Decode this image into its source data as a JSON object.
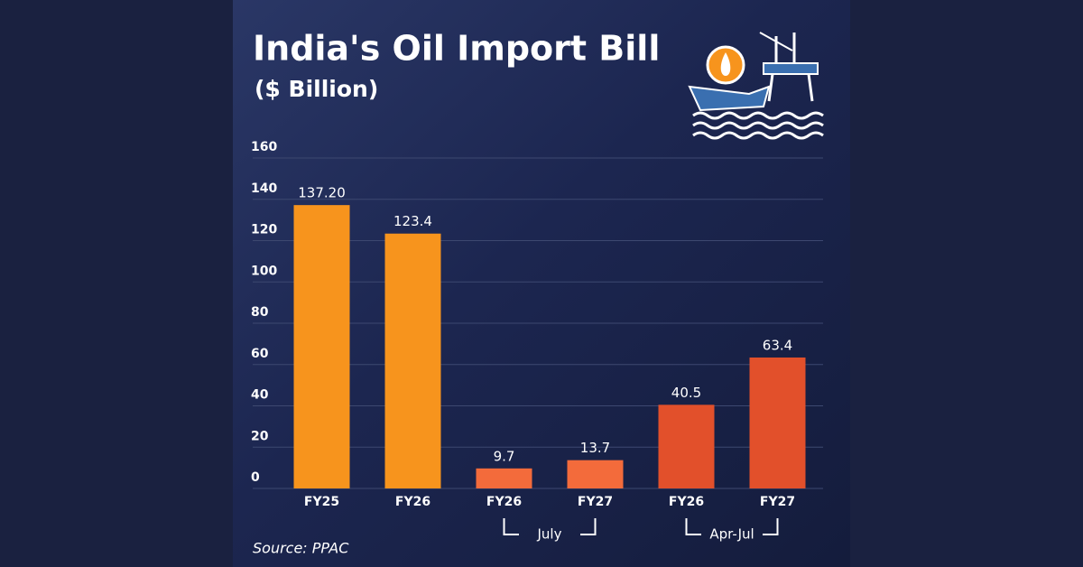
{
  "chart_data": {
    "type": "bar",
    "title": "India's Oil Import Bill",
    "subtitle": "($ Billion)",
    "categories": [
      "FY25",
      "FY26",
      "FY26",
      "FY27",
      "FY26",
      "FY27"
    ],
    "values": [
      137.2,
      123.4,
      9.7,
      13.7,
      40.5,
      63.4
    ],
    "value_labels": [
      "137.20",
      "123.4",
      "9.7",
      "13.7",
      "40.5",
      "63.4"
    ],
    "colors": [
      "#f7941d",
      "#f7941d",
      "#f36b3b",
      "#f36b3b",
      "#e2502b",
      "#e2502b"
    ],
    "groups": [
      "July",
      "Apr-Jul"
    ],
    "ylim": [
      0,
      160
    ],
    "yticks": [
      0,
      20,
      40,
      60,
      80,
      100,
      120,
      140,
      160
    ],
    "grid": true,
    "source": "Source: PPAC"
  }
}
